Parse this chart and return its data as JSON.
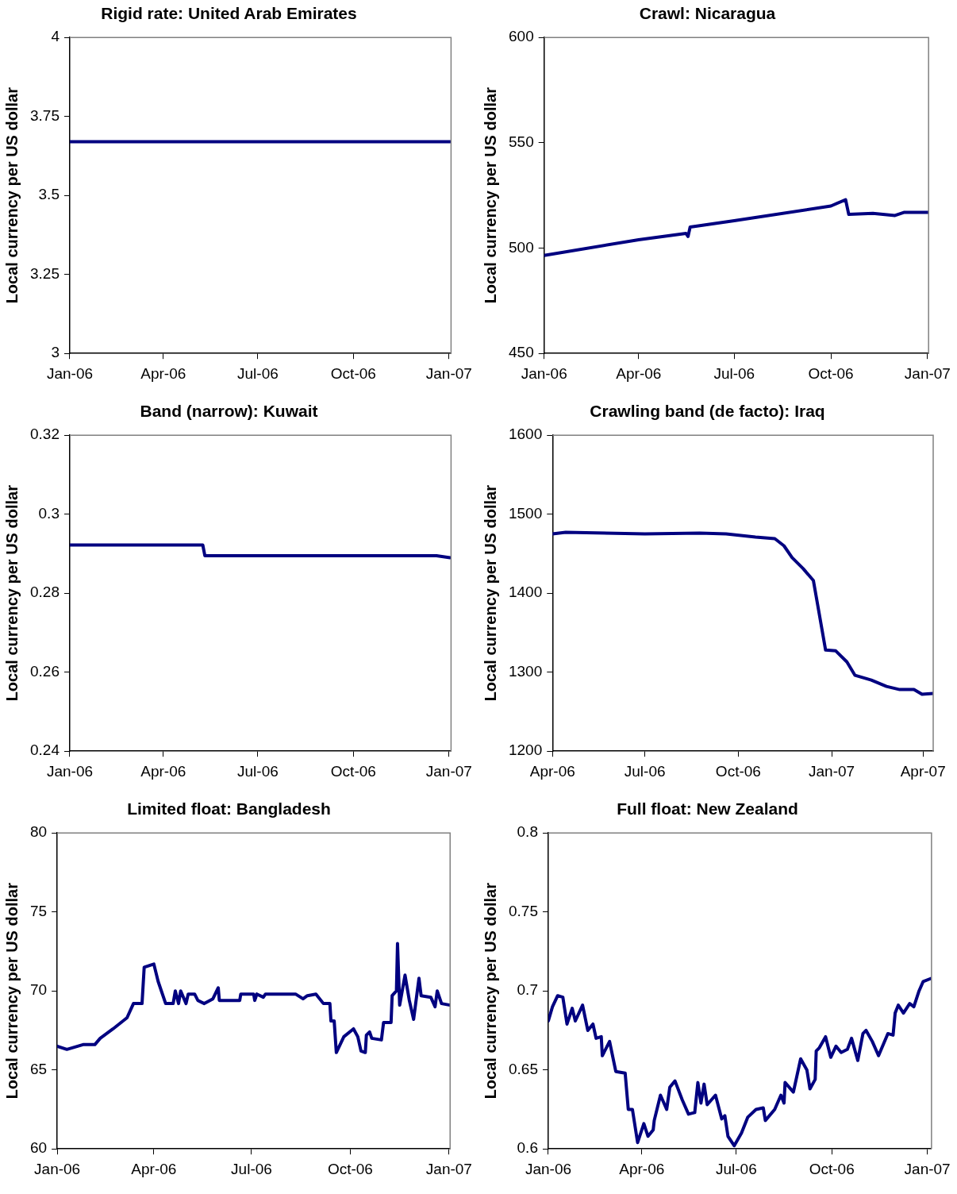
{
  "chart_data": [
    {
      "type": "line",
      "title": "Rigid rate: United Arab Emirates",
      "ylabel": "Local currency per US dollar",
      "xlim": [
        "2006-01-01",
        "2007-01-03"
      ],
      "xticks": [
        {
          "value": "2006-01-01",
          "label": "Jan-06"
        },
        {
          "value": "2006-04-01",
          "label": "Apr-06"
        },
        {
          "value": "2006-07-01",
          "label": "Jul-06"
        },
        {
          "value": "2006-10-01",
          "label": "Oct-06"
        },
        {
          "value": "2007-01-01",
          "label": "Jan-07"
        }
      ],
      "ylim": [
        3,
        4
      ],
      "yticks": [
        3,
        3.25,
        3.5,
        3.75,
        4
      ],
      "grid": false,
      "legend": false,
      "marker": "none",
      "line_style": "solid",
      "series": [
        {
          "color": "#000080",
          "x": [
            "2006-01-01",
            "2006-04-01",
            "2006-07-01",
            "2006-10-01",
            "2007-01-02"
          ],
          "values": [
            3.67,
            3.67,
            3.67,
            3.67,
            3.67
          ]
        }
      ]
    },
    {
      "type": "line",
      "title": "Crawl: Nicaragua",
      "ylabel": "Local currency per US dollar",
      "xlim": [
        "2006-01-01",
        "2007-01-02"
      ],
      "xticks": [
        {
          "value": "2006-01-01",
          "label": "Jan-06"
        },
        {
          "value": "2006-04-01",
          "label": "Apr-06"
        },
        {
          "value": "2006-07-01",
          "label": "Jul-06"
        },
        {
          "value": "2006-10-01",
          "label": "Oct-06"
        },
        {
          "value": "2007-01-01",
          "label": "Jan-07"
        }
      ],
      "ylim": [
        450,
        600
      ],
      "yticks": [
        450,
        500,
        550,
        600
      ],
      "grid": false,
      "legend": false,
      "marker": "none",
      "line_style": "solid",
      "series": [
        {
          "color": "#000080",
          "x": [
            "2006-01-01",
            "2006-04-01",
            "2006-05-16",
            "2006-05-18",
            "2006-05-20",
            "2006-07-01",
            "2006-10-01",
            "2006-10-15",
            "2006-10-18",
            "2006-11-10",
            "2006-12-01",
            "2006-12-10",
            "2007-01-02"
          ],
          "values": [
            496.5,
            504,
            507,
            505.5,
            510,
            513,
            520,
            523,
            516,
            516.5,
            515.5,
            517,
            517
          ]
        }
      ]
    },
    {
      "type": "line",
      "title": "Band (narrow): Kuwait",
      "ylabel": "Local currency per US dollar",
      "xlim": [
        "2006-01-01",
        "2007-01-03"
      ],
      "xticks": [
        {
          "value": "2006-01-01",
          "label": "Jan-06"
        },
        {
          "value": "2006-04-01",
          "label": "Apr-06"
        },
        {
          "value": "2006-07-01",
          "label": "Jul-06"
        },
        {
          "value": "2006-10-01",
          "label": "Oct-06"
        },
        {
          "value": "2007-01-01",
          "label": "Jan-07"
        }
      ],
      "ylim": [
        0.24,
        0.32
      ],
      "yticks": [
        0.24,
        0.26,
        0.28,
        0.3,
        0.32
      ],
      "grid": false,
      "legend": false,
      "marker": "none",
      "line_style": "solid",
      "series": [
        {
          "color": "#000080",
          "x": [
            "2006-01-01",
            "2006-05-09",
            "2006-05-11",
            "2006-12-20",
            "2007-01-02"
          ],
          "values": [
            0.2922,
            0.2922,
            0.2895,
            0.2895,
            0.289
          ]
        }
      ]
    },
    {
      "type": "line",
      "title": "Crawling band (de facto): Iraq",
      "ylabel": "Local currency per US dollar",
      "xlim": [
        "2006-04-01",
        "2007-04-11"
      ],
      "xticks": [
        {
          "value": "2006-04-01",
          "label": "Apr-06"
        },
        {
          "value": "2006-07-01",
          "label": "Jul-06"
        },
        {
          "value": "2006-10-01",
          "label": "Oct-06"
        },
        {
          "value": "2007-01-01",
          "label": "Jan-07"
        },
        {
          "value": "2007-04-01",
          "label": "Apr-07"
        }
      ],
      "ylim": [
        1200,
        1600
      ],
      "yticks": [
        1200,
        1300,
        1400,
        1500,
        1600
      ],
      "grid": false,
      "legend": false,
      "marker": "none",
      "line_style": "solid",
      "series": [
        {
          "color": "#000080",
          "x": [
            "2006-04-01",
            "2006-04-14",
            "2006-07-01",
            "2006-08-24",
            "2006-09-19",
            "2006-10-18",
            "2006-11-06",
            "2006-11-15",
            "2006-11-23",
            "2006-12-04",
            "2006-12-14",
            "2006-12-26",
            "2007-01-05",
            "2007-01-16",
            "2007-01-24",
            "2007-02-09",
            "2007-02-24",
            "2007-03-09",
            "2007-03-23",
            "2007-03-31",
            "2007-04-11"
          ],
          "values": [
            1475,
            1477,
            1475,
            1476,
            1475,
            1471,
            1469,
            1460,
            1445,
            1431,
            1416,
            1328,
            1327,
            1313,
            1296,
            1290,
            1282,
            1278,
            1278,
            1272,
            1273
          ]
        }
      ]
    },
    {
      "type": "line",
      "title": "Limited float: Bangladesh",
      "ylabel": "Local currency per US dollar",
      "xlim": [
        "2006-01-01",
        "2007-01-02"
      ],
      "xticks": [
        {
          "value": "2006-01-01",
          "label": "Jan-06"
        },
        {
          "value": "2006-04-01",
          "label": "Apr-06"
        },
        {
          "value": "2006-07-01",
          "label": "Jul-06"
        },
        {
          "value": "2006-10-01",
          "label": "Oct-06"
        },
        {
          "value": "2007-01-01",
          "label": "Jan-07"
        }
      ],
      "ylim": [
        60,
        80
      ],
      "yticks": [
        60,
        65,
        70,
        75,
        80
      ],
      "grid": false,
      "legend": false,
      "marker": "none",
      "line_style": "solid",
      "series": [
        {
          "color": "#000080",
          "x": [
            "2006-01-01",
            "2006-01-10",
            "2006-01-25",
            "2006-02-05",
            "2006-02-10",
            "2006-02-22",
            "2006-03-07",
            "2006-03-13",
            "2006-03-21",
            "2006-03-23",
            "2006-04-01",
            "2006-04-05",
            "2006-04-12",
            "2006-04-19",
            "2006-04-21",
            "2006-04-24",
            "2006-04-26",
            "2006-05-01",
            "2006-05-03",
            "2006-05-09",
            "2006-05-12",
            "2006-05-18",
            "2006-05-26",
            "2006-05-31",
            "2006-06-01",
            "2006-06-20",
            "2006-06-21",
            "2006-07-03",
            "2006-07-04",
            "2006-07-06",
            "2006-07-12",
            "2006-07-14",
            "2006-08-11",
            "2006-08-18",
            "2006-08-22",
            "2006-08-30",
            "2006-09-06",
            "2006-09-12",
            "2006-09-13",
            "2006-09-16",
            "2006-09-18",
            "2006-09-25",
            "2006-10-04",
            "2006-10-08",
            "2006-10-11",
            "2006-10-15",
            "2006-10-16",
            "2006-10-19",
            "2006-10-21",
            "2006-10-30",
            "2006-11-01",
            "2006-11-08",
            "2006-11-09",
            "2006-11-13",
            "2006-11-14",
            "2006-11-16",
            "2006-11-21",
            "2006-11-25",
            "2006-11-29",
            "2006-12-04",
            "2006-12-06",
            "2006-12-15",
            "2006-12-19",
            "2006-12-21",
            "2006-12-25",
            "2007-01-02"
          ],
          "values": [
            66.5,
            66.3,
            66.6,
            66.6,
            67.0,
            67.6,
            68.3,
            69.2,
            69.2,
            71.5,
            71.7,
            70.6,
            69.2,
            69.2,
            70.0,
            69.2,
            70.0,
            69.2,
            69.8,
            69.8,
            69.4,
            69.2,
            69.5,
            70.2,
            69.4,
            69.4,
            69.8,
            69.8,
            69.4,
            69.8,
            69.6,
            69.8,
            69.8,
            69.5,
            69.7,
            69.8,
            69.2,
            69.2,
            68.1,
            68.1,
            66.1,
            67.1,
            67.6,
            67.1,
            66.2,
            66.1,
            67.2,
            67.4,
            67.0,
            66.9,
            68.0,
            68.0,
            69.7,
            70.0,
            73.0,
            69.1,
            71.0,
            69.4,
            68.2,
            70.8,
            69.7,
            69.6,
            69.0,
            70.0,
            69.2,
            69.1
          ]
        }
      ]
    },
    {
      "type": "line",
      "title": "Full float: New Zealand",
      "ylabel": "Local currency per US dollar",
      "xlim": [
        "2006-01-01",
        "2007-01-05"
      ],
      "xticks": [
        {
          "value": "2006-01-01",
          "label": "Jan-06"
        },
        {
          "value": "2006-04-01",
          "label": "Apr-06"
        },
        {
          "value": "2006-07-01",
          "label": "Jul-06"
        },
        {
          "value": "2006-10-01",
          "label": "Oct-06"
        },
        {
          "value": "2007-01-01",
          "label": "Jan-07"
        }
      ],
      "ylim": [
        0.6,
        0.8
      ],
      "yticks": [
        0.6,
        0.65,
        0.7,
        0.75,
        0.8
      ],
      "grid": false,
      "legend": false,
      "marker": "none",
      "line_style": "solid",
      "series": [
        {
          "color": "#000080",
          "x": [
            "2006-01-01",
            "2006-01-05",
            "2006-01-10",
            "2006-01-15",
            "2006-01-19",
            "2006-01-24",
            "2006-01-27",
            "2006-02-03",
            "2006-02-08",
            "2006-02-13",
            "2006-02-16",
            "2006-02-21",
            "2006-02-22",
            "2006-03-01",
            "2006-03-07",
            "2006-03-16",
            "2006-03-19",
            "2006-03-23",
            "2006-03-28",
            "2006-04-03",
            "2006-04-07",
            "2006-04-12",
            "2006-04-13",
            "2006-04-19",
            "2006-04-25",
            "2006-04-28",
            "2006-05-03",
            "2006-05-10",
            "2006-05-16",
            "2006-05-22",
            "2006-05-25",
            "2006-05-28",
            "2006-05-31",
            "2006-06-03",
            "2006-06-11",
            "2006-06-17",
            "2006-06-20",
            "2006-06-23",
            "2006-06-29",
            "2006-07-06",
            "2006-07-12",
            "2006-07-20",
            "2006-07-27",
            "2006-07-29",
            "2006-08-07",
            "2006-08-13",
            "2006-08-16",
            "2006-08-17",
            "2006-08-25",
            "2006-09-01",
            "2006-09-07",
            "2006-09-10",
            "2006-09-15",
            "2006-09-16",
            "2006-09-19",
            "2006-09-25",
            "2006-09-30",
            "2006-10-05",
            "2006-10-10",
            "2006-10-16",
            "2006-10-20",
            "2006-10-26",
            "2006-10-31",
            "2006-11-03",
            "2006-11-09",
            "2006-11-15",
            "2006-11-24",
            "2006-11-29",
            "2006-12-01",
            "2006-12-04",
            "2006-12-09",
            "2006-12-15",
            "2006-12-19",
            "2006-12-24",
            "2006-12-28",
            "2007-01-05"
          ],
          "values": [
            0.681,
            0.69,
            0.697,
            0.696,
            0.679,
            0.689,
            0.681,
            0.691,
            0.675,
            0.679,
            0.67,
            0.671,
            0.659,
            0.668,
            0.649,
            0.648,
            0.625,
            0.625,
            0.604,
            0.616,
            0.608,
            0.612,
            0.618,
            0.634,
            0.625,
            0.639,
            0.643,
            0.631,
            0.622,
            0.623,
            0.642,
            0.629,
            0.641,
            0.628,
            0.634,
            0.619,
            0.621,
            0.608,
            0.602,
            0.61,
            0.62,
            0.625,
            0.626,
            0.618,
            0.625,
            0.634,
            0.629,
            0.642,
            0.636,
            0.657,
            0.65,
            0.638,
            0.644,
            0.662,
            0.664,
            0.671,
            0.658,
            0.665,
            0.661,
            0.663,
            0.67,
            0.656,
            0.673,
            0.675,
            0.668,
            0.659,
            0.673,
            0.672,
            0.686,
            0.691,
            0.686,
            0.692,
            0.69,
            0.7,
            0.706,
            0.708
          ]
        }
      ]
    }
  ]
}
